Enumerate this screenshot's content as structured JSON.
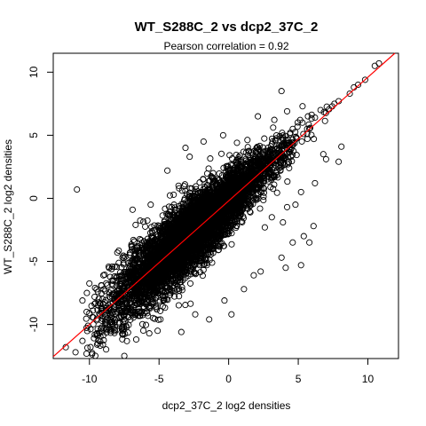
{
  "chart_data": {
    "type": "scatter",
    "title": "WT_S288C_2 vs dcp2_37C_2",
    "subtitle": "Pearson correlation =  0.92",
    "xlabel": "dcp2_37C_2 log2 densities",
    "ylabel": "WT_S288C_2 log2 densities",
    "xlim": [
      -12.6,
      12.2
    ],
    "ylim": [
      -12.7,
      11.5
    ],
    "x_ticks": [
      -10,
      -5,
      0,
      5,
      10
    ],
    "y_ticks": [
      -10,
      -5,
      0,
      5,
      10
    ],
    "x_tick_labels": [
      "-10",
      "-5",
      "0",
      "5",
      "10"
    ],
    "y_tick_labels": [
      "-10",
      "-5",
      "0",
      "5",
      "10"
    ],
    "grid": false,
    "legend": "none",
    "regression_line": {
      "slope": 0.98,
      "intercept": -0.2,
      "color": "#ff0000"
    },
    "point_marker": "open-circle",
    "point_color": "#000000",
    "cloud": {
      "n": 6000,
      "x_mean": -2.5,
      "x_sd": 2.9,
      "slope": 0.98,
      "intercept": -0.2,
      "residual_sd": 1.15
    },
    "points": [
      [
        10.8,
        10.7
      ],
      [
        10.5,
        10.5
      ],
      [
        9.8,
        9.4
      ],
      [
        9.3,
        9.0
      ],
      [
        9.0,
        8.8
      ],
      [
        8.7,
        8.3
      ],
      [
        7.9,
        7.7
      ],
      [
        7.6,
        7.5
      ],
      [
        6.6,
        7.0
      ],
      [
        6.2,
        6.4
      ],
      [
        5.7,
        6.5
      ],
      [
        5.3,
        6.0
      ],
      [
        -10.9,
        0.7
      ],
      [
        -11.7,
        -11.8
      ],
      [
        -11.0,
        -12.2
      ],
      [
        -10.1,
        -10.1
      ],
      [
        -10.5,
        -11.3
      ],
      [
        -10.2,
        -9.0
      ],
      [
        -10.5,
        -8.1
      ],
      [
        -9.6,
        -7.1
      ],
      [
        -8.8,
        -8.7
      ],
      [
        -9.4,
        -11.5
      ],
      [
        -7.6,
        -10.5
      ],
      [
        -7.5,
        -9.3
      ],
      [
        -5.7,
        -10.7
      ],
      [
        -5.1,
        -10.5
      ],
      [
        -3.4,
        -10.6
      ],
      [
        -2.4,
        -9.2
      ],
      [
        -1.4,
        -9.6
      ],
      [
        0.2,
        -9.2
      ],
      [
        -0.3,
        -8.1
      ],
      [
        1.1,
        -7.2
      ],
      [
        1.8,
        -6.1
      ],
      [
        2.3,
        -5.8
      ],
      [
        4.1,
        -5.5
      ],
      [
        3.8,
        -4.7
      ],
      [
        4.6,
        -3.5
      ],
      [
        5.2,
        -5.3
      ],
      [
        5.8,
        -3.5
      ],
      [
        6.1,
        -2.2
      ],
      [
        5.4,
        -3.0
      ],
      [
        2.6,
        -2.3
      ],
      [
        3.1,
        -1.5
      ],
      [
        3.9,
        -1.9
      ],
      [
        4.2,
        -0.7
      ],
      [
        4.8,
        -0.5
      ],
      [
        5.2,
        0.5
      ],
      [
        6.2,
        1.2
      ],
      [
        7.0,
        3.1
      ],
      [
        6.8,
        3.5
      ],
      [
        7.9,
        2.9
      ],
      [
        8.1,
        4.1
      ],
      [
        -5.2,
        -8.7
      ],
      [
        -4.9,
        -9.6
      ],
      [
        -6.4,
        -9.3
      ],
      [
        -4.4,
        2.2
      ],
      [
        -2.8,
        3.3
      ],
      [
        -3.6,
        1.0
      ],
      [
        -5.6,
        -0.5
      ],
      [
        -6.9,
        -0.9
      ],
      [
        -4.2,
        -1.3
      ],
      [
        -8.0,
        -4.3
      ],
      [
        -8.4,
        -5.6
      ],
      [
        -9.0,
        -6.1
      ],
      [
        -8.0,
        -6.5
      ],
      [
        -0.4,
        5.0
      ],
      [
        0.6,
        4.4
      ],
      [
        2.1,
        6.5
      ],
      [
        3.8,
        8.5
      ],
      [
        4.2,
        6.9
      ],
      [
        -1.8,
        4.5
      ],
      [
        -3.1,
        4.0
      ]
    ]
  }
}
